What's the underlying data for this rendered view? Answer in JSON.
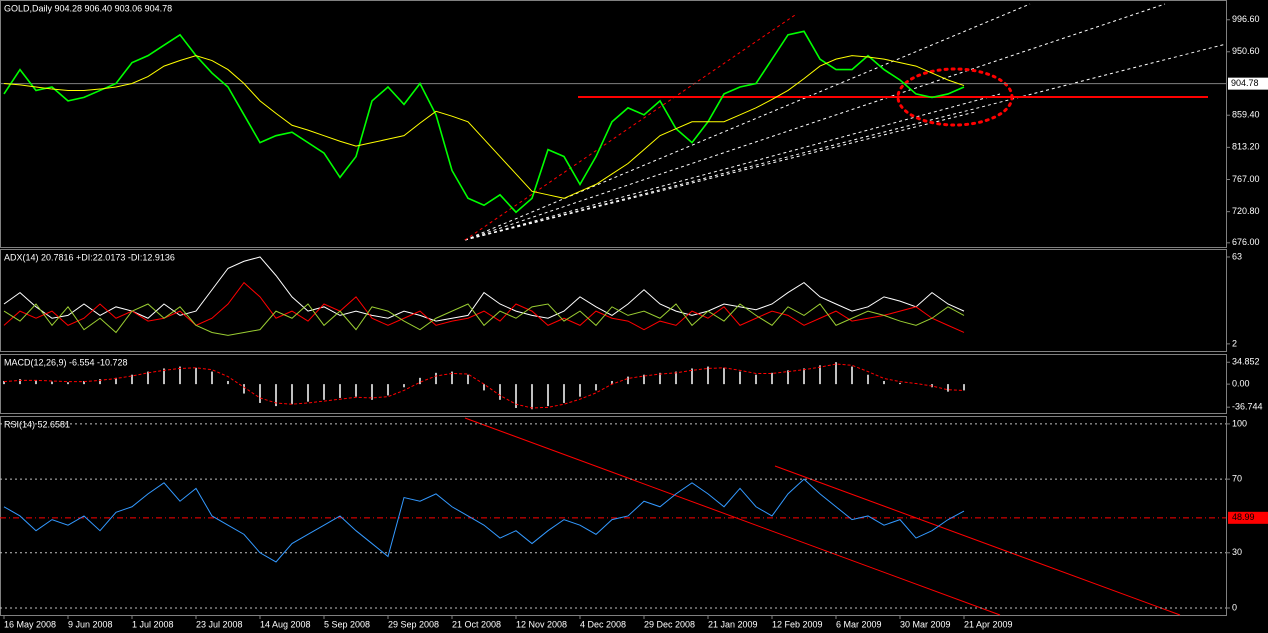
{
  "chart_data": [
    {
      "type": "line",
      "title": "GOLD,Daily  904.28 906.40 903.06 904.78",
      "series": [
        {
          "color": "#00ff00",
          "values": [
            890,
            925,
            895,
            900,
            880,
            885,
            895,
            905,
            935,
            945,
            960,
            975,
            945,
            920,
            900,
            860,
            820,
            830,
            835,
            820,
            805,
            770,
            800,
            880,
            900,
            875,
            905,
            860,
            780,
            740,
            730,
            745,
            720,
            740,
            810,
            800,
            760,
            800,
            850,
            870,
            860,
            880,
            840,
            820,
            850,
            890,
            900,
            905,
            940,
            975,
            980,
            940,
            925,
            925,
            945,
            925,
            910,
            890,
            885,
            890,
            900
          ]
        },
        {
          "color": "#ffff00",
          "values": [
            905,
            903,
            900,
            897,
            895,
            895,
            897,
            900,
            905,
            915,
            930,
            938,
            945,
            938,
            925,
            905,
            880,
            862,
            845,
            838,
            830,
            822,
            815,
            820,
            825,
            830,
            848,
            865,
            858,
            850,
            825,
            800,
            775,
            750,
            745,
            740,
            750,
            760,
            775,
            790,
            810,
            830,
            840,
            850,
            850,
            850,
            860,
            870,
            882,
            895,
            912,
            930,
            940,
            945,
            943,
            940,
            935,
            930,
            920,
            910,
            902
          ]
        }
      ],
      "ylim": [
        670,
        1025
      ],
      "yticks": [
        {
          "value": 676,
          "label": "676.00"
        },
        {
          "value": 720.8,
          "label": "720.80"
        },
        {
          "value": 767,
          "label": "767.00"
        },
        {
          "value": 813.2,
          "label": "813.20"
        },
        {
          "value": 859.4,
          "label": "859.40"
        },
        {
          "value": 950.6,
          "label": "950.60"
        },
        {
          "value": 996.6,
          "label": "996.60"
        }
      ],
      "last_price": 904.78
    },
    {
      "type": "line",
      "title": "ADX(14) 20.7816 +DI:22.0173 -DI:12.9136",
      "series": [
        {
          "color": "#ffffff",
          "values": [
            30,
            38,
            28,
            20,
            22,
            30,
            22,
            28,
            25,
            20,
            30,
            22,
            25,
            40,
            55,
            60,
            63,
            50,
            35,
            25,
            28,
            22,
            25,
            22,
            20,
            25,
            22,
            18,
            20,
            22,
            38,
            30,
            25,
            22,
            20,
            25,
            35,
            28,
            22,
            30,
            40,
            30,
            25,
            22,
            25,
            30,
            28,
            26,
            30,
            38,
            45,
            35,
            30,
            25,
            28,
            35,
            32,
            28,
            38,
            30,
            25
          ]
        },
        {
          "color": "#ff0000",
          "values": [
            15,
            25,
            20,
            25,
            15,
            20,
            30,
            20,
            25,
            18,
            20,
            25,
            15,
            20,
            30,
            45,
            35,
            20,
            25,
            18,
            30,
            25,
            35,
            20,
            15,
            20,
            25,
            15,
            18,
            20,
            25,
            18,
            30,
            25,
            15,
            20,
            15,
            25,
            20,
            18,
            12,
            18,
            15,
            25,
            20,
            28,
            15,
            20,
            25,
            22,
            15,
            20,
            25,
            18,
            20,
            22,
            25,
            28,
            20,
            15,
            10
          ]
        },
        {
          "color": "#9acd32",
          "values": [
            25,
            18,
            30,
            15,
            28,
            12,
            20,
            10,
            25,
            30,
            20,
            28,
            15,
            10,
            8,
            10,
            12,
            25,
            20,
            30,
            15,
            25,
            12,
            28,
            25,
            18,
            12,
            20,
            25,
            30,
            15,
            25,
            20,
            28,
            30,
            18,
            25,
            15,
            28,
            22,
            25,
            20,
            30,
            15,
            25,
            18,
            30,
            22,
            15,
            28,
            22,
            30,
            15,
            20,
            25,
            22,
            18,
            15,
            20,
            28,
            22
          ]
        }
      ],
      "ylim": [
        -3,
        68.6
      ],
      "yticks": [
        63,
        2
      ]
    },
    {
      "type": "bar",
      "title": "MACD(12,26,9) -6.554 -10.728",
      "series": [
        {
          "color": "#c0c0c0",
          "values": [
            5,
            8,
            6,
            4,
            3,
            5,
            8,
            10,
            15,
            20,
            25,
            28,
            26,
            20,
            5,
            -15,
            -30,
            -35,
            -32,
            -28,
            -25,
            -22,
            -20,
            -25,
            -18,
            -5,
            10,
            18,
            20,
            15,
            -10,
            -25,
            -38,
            -40,
            -35,
            -30,
            -20,
            -10,
            5,
            12,
            15,
            18,
            20,
            25,
            28,
            26,
            20,
            15,
            18,
            22,
            25,
            30,
            35,
            28,
            15,
            5,
            2,
            0,
            -5,
            -12,
            -10
          ]
        },
        {
          "color": "#ff0000",
          "type": "line",
          "dashed": true,
          "values": [
            4,
            6,
            6,
            5,
            4,
            4,
            6,
            9,
            13,
            18,
            22,
            25,
            26,
            23,
            12,
            -5,
            -22,
            -30,
            -32,
            -30,
            -27,
            -24,
            -21,
            -22,
            -20,
            -10,
            3,
            13,
            17,
            16,
            0,
            -18,
            -32,
            -38,
            -37,
            -32,
            -24,
            -14,
            0,
            9,
            13,
            16,
            18,
            22,
            25,
            26,
            22,
            17,
            17,
            20,
            23,
            27,
            32,
            30,
            20,
            9,
            4,
            1,
            -3,
            -9,
            -10
          ]
        }
      ],
      "ylim": [
        -46,
        48
      ],
      "yticks": [
        34.852,
        {
          "value": 0,
          "label": "0.00"
        },
        -36.744
      ]
    },
    {
      "type": "line",
      "title": "RSI(14) 52.6581",
      "categories": [
        "16 May 2008",
        null,
        null,
        null,
        "9 Jun 2008",
        null,
        null,
        null,
        "1 Jul 2008",
        null,
        null,
        null,
        "23 Jul 2008",
        null,
        null,
        null,
        "14 Aug 2008",
        null,
        null,
        null,
        "5 Sep 2008",
        null,
        null,
        null,
        "29 Sep 2008",
        null,
        null,
        null,
        "21 Oct 2008",
        null,
        null,
        null,
        "12 Nov 2008",
        null,
        null,
        null,
        "4 Dec 2008",
        null,
        null,
        null,
        "29 Dec 2008",
        null,
        null,
        null,
        "21 Jan 2009",
        null,
        null,
        null,
        "12 Feb 2009",
        null,
        null,
        null,
        "6 Mar 2009",
        null,
        null,
        null,
        "30 Mar 2009",
        null,
        null,
        null,
        "21 Apr 2009"
      ],
      "series": [
        {
          "color": "#3399ff",
          "values": [
            55,
            50,
            42,
            48,
            45,
            50,
            42,
            52,
            55,
            62,
            68,
            58,
            65,
            50,
            45,
            40,
            30,
            25,
            35,
            40,
            45,
            50,
            42,
            35,
            28,
            60,
            58,
            62,
            55,
            50,
            45,
            38,
            42,
            35,
            42,
            48,
            45,
            40,
            48,
            50,
            58,
            55,
            62,
            68,
            62,
            55,
            65,
            55,
            50,
            62,
            70,
            62,
            55,
            48,
            50,
            45,
            48,
            38,
            42,
            48,
            52.66
          ]
        }
      ],
      "ylim": [
        -3.8,
        104.3
      ],
      "yticks": [
        100,
        70,
        30,
        0
      ],
      "grid": true,
      "hline": 48.99
    }
  ]
}
